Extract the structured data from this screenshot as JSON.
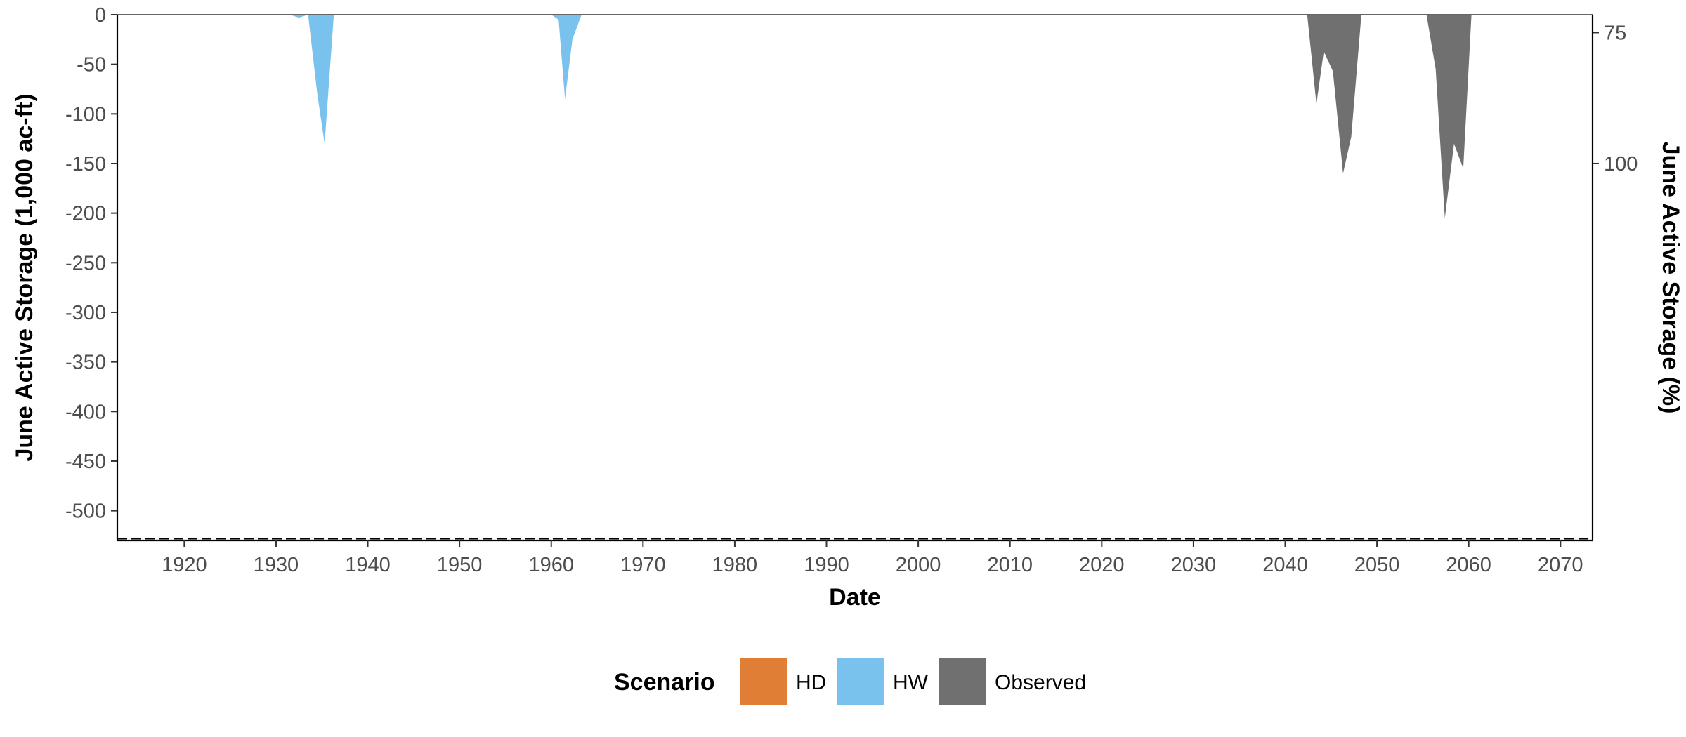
{
  "chart_data": {
    "type": "area",
    "xlabel": "Date",
    "ylabel": "June Active Storage (1,000 ac-ft)",
    "ylabel_right": "June Active Storage (%)",
    "xlim": [
      1912.7,
      2073.5
    ],
    "ylim": [
      -530,
      0
    ],
    "x_ticks": [
      1920,
      1930,
      1940,
      1950,
      1960,
      1970,
      1980,
      1990,
      2000,
      2010,
      2020,
      2030,
      2040,
      2050,
      2060,
      2070
    ],
    "x_tick_labels": [
      "1920",
      "1930",
      "1940",
      "1950",
      "1960",
      "1970",
      "1980",
      "1990",
      "2000",
      "2010",
      "2020",
      "2030",
      "2040",
      "2050",
      "2060",
      "2070"
    ],
    "y_ticks": [
      0,
      -50,
      -100,
      -150,
      -200,
      -250,
      -300,
      -350,
      -400,
      -450,
      -500
    ],
    "y_tick_labels": [
      "0",
      "-50",
      "-100",
      "-150",
      "-200",
      "-250",
      "-300",
      "-350",
      "-400",
      "-450",
      "-500"
    ],
    "y2_ticks": [
      {
        "value": 75,
        "at_primary": -18
      },
      {
        "value": 100,
        "at_primary": -150
      }
    ],
    "y2_tick_labels": [
      "75",
      "100"
    ],
    "grid": false,
    "legend_title": "Scenario",
    "legend_position": "bottom",
    "legend": [
      {
        "name": "HD",
        "color": "#E07E35"
      },
      {
        "name": "HW",
        "color": "#79C2EE"
      },
      {
        "name": "Observed",
        "color": "#707070"
      }
    ],
    "baseline_dashed": -530,
    "series": [
      {
        "name": "HW",
        "color": "#79C2EE",
        "x": [
          1931.5,
          1932.5,
          1933.5,
          1934.5,
          1935.3,
          1936.3
        ],
        "y": [
          0,
          -3,
          0,
          -80,
          -130,
          0
        ]
      },
      {
        "name": "HW",
        "color": "#79C2EE",
        "x": [
          1960.0,
          1960.8,
          1961.5,
          1962.3,
          1963.3
        ],
        "y": [
          0,
          -5,
          -85,
          -25,
          0
        ]
      },
      {
        "name": "Observed",
        "color": "#707070",
        "x": [
          2042.4,
          2043.4,
          2044.2,
          2045.2,
          2046.3,
          2047.2,
          2048.3
        ],
        "y": [
          0,
          -90,
          -37,
          -57,
          -160,
          -123,
          0
        ]
      },
      {
        "name": "Observed",
        "color": "#707070",
        "x": [
          2055.4,
          2056.4,
          2057.4,
          2058.4,
          2059.4,
          2060.3
        ],
        "y": [
          0,
          -55,
          -205,
          -130,
          -155,
          0
        ]
      }
    ]
  }
}
